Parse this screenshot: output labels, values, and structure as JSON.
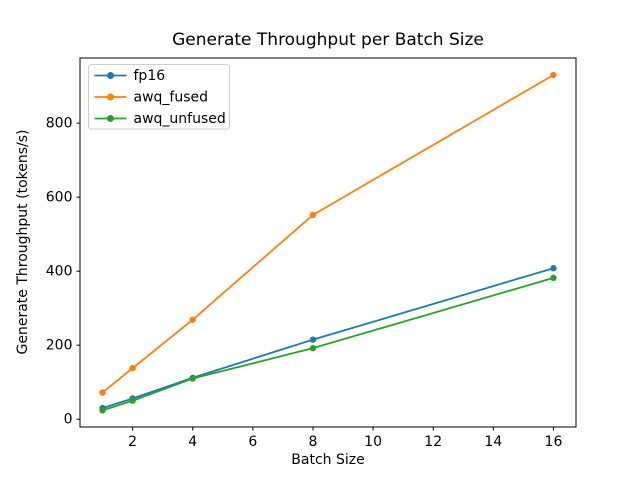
{
  "figure": {
    "title": "Generate Throughput per Batch Size",
    "xlabel": "Batch Size",
    "ylabel": "Generate Throughput (tokens/s)"
  },
  "chart_data": {
    "type": "line",
    "title": "Generate Throughput per Batch Size",
    "xlabel": "Batch Size",
    "ylabel": "Generate Throughput (tokens/s)",
    "x": [
      1,
      2,
      4,
      8,
      16
    ],
    "series": [
      {
        "name": "fp16",
        "color": "#1f77b4",
        "values": [
          30,
          56,
          112,
          215,
          408
        ]
      },
      {
        "name": "awq_fused",
        "color": "#ff7f0e",
        "values": [
          72,
          138,
          269,
          552,
          930
        ]
      },
      {
        "name": "awq_unfused",
        "color": "#2ca02c",
        "values": [
          24,
          50,
          110,
          192,
          382
        ]
      }
    ],
    "xticks": [
      2,
      4,
      6,
      8,
      10,
      12,
      14,
      16
    ],
    "yticks": [
      0,
      200,
      400,
      600,
      800
    ],
    "xlim": [
      0.25,
      16.75
    ],
    "ylim": [
      -21,
      976
    ],
    "marker": "circle",
    "grid": false,
    "legend": {
      "position": "upper-left",
      "entries": [
        "fp16",
        "awq_fused",
        "awq_unfused"
      ]
    },
    "colors": {
      "spine": "#000000",
      "legend_border": "#cccccc",
      "background": "#ffffff"
    }
  }
}
